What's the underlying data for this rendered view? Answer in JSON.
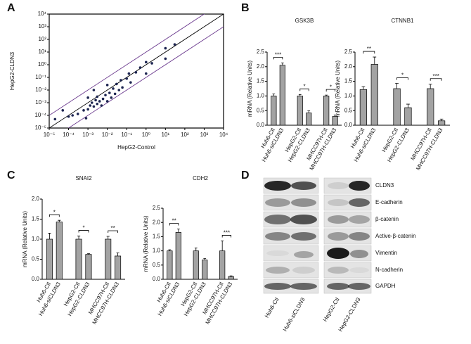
{
  "panels": [
    "A",
    "B",
    "C",
    "D"
  ],
  "chart_data": [
    {
      "type": "scatter",
      "x_label": "HepG2-Control",
      "y_label": "HepG2-CLDN3",
      "log_scale": true,
      "color": "#1c2450",
      "x": [
        2e-05,
        5e-05,
        0.0001,
        0.00016,
        0.0003,
        0.0006,
        0.0008,
        0.001,
        0.001,
        0.0013,
        0.0016,
        0.002,
        0.002,
        0.0025,
        0.003,
        0.003,
        0.004,
        0.005,
        0.006,
        0.008,
        0.01,
        0.01,
        0.013,
        0.016,
        0.02,
        0.025,
        0.03,
        0.04,
        0.05,
        0.06,
        0.1,
        0.13,
        0.16,
        0.3,
        0.5,
        1,
        1,
        2,
        10,
        10,
        30
      ],
      "y": [
        5e-05,
        0.00025,
        8e-05,
        0.0001,
        0.00013,
        0.00025,
        6e-05,
        0.0003,
        0.0025,
        0.0006,
        0.001,
        0.0005,
        0.01,
        0.0016,
        0.0008,
        0.003,
        0.0013,
        0.0006,
        0.002,
        0.004,
        0.0013,
        0.025,
        0.006,
        0.0025,
        0.013,
        0.005,
        0.03,
        0.01,
        0.06,
        0.016,
        0.08,
        0.2,
        0.04,
        0.25,
        0.6,
        1.6,
        0.2,
        1.3,
        20,
        3,
        40
      ],
      "fold_lines": [
        {
          "factor": 1,
          "color": "#000000"
        },
        {
          "factor": 10,
          "color": "#6b3a8e"
        },
        {
          "factor": 0.1,
          "color": "#6b3a8e"
        }
      ],
      "xlim": [
        1e-05,
        10000.0
      ],
      "ylim": [
        1e-05,
        10000.0
      ],
      "xticks": [
        {
          "value": 1e-05,
          "label": "10⁻⁵"
        },
        {
          "value": 0.0001,
          "label": "10⁻⁴"
        },
        {
          "value": 0.001,
          "label": "10⁻³"
        },
        {
          "value": 0.01,
          "label": "10⁻²"
        },
        {
          "value": 0.1,
          "label": "10⁻¹"
        },
        {
          "value": 1,
          "label": "10⁰"
        },
        {
          "value": 10,
          "label": "10¹"
        },
        {
          "value": 100,
          "label": "10²"
        },
        {
          "value": 1000,
          "label": "10³"
        },
        {
          "value": 10000,
          "label": "10⁴"
        }
      ],
      "yticks": [
        {
          "value": 1e-05,
          "label": "10⁻⁵"
        },
        {
          "value": 0.0001,
          "label": "10⁻⁴"
        },
        {
          "value": 0.001,
          "label": "10⁻³"
        },
        {
          "value": 0.01,
          "label": "10⁻²"
        },
        {
          "value": 0.1,
          "label": "10⁻¹"
        },
        {
          "value": 1,
          "label": "10⁰"
        },
        {
          "value": 10,
          "label": "10¹"
        },
        {
          "value": 100,
          "label": "10²"
        },
        {
          "value": 1000,
          "label": "10³"
        },
        {
          "value": 10000,
          "label": "10⁴"
        }
      ]
    },
    {
      "type": "bar",
      "title": "GSK3B",
      "y_label": "mRNA (Relative Units)",
      "color": "#a3a3a3",
      "categories": [
        "Huh6-Ctl",
        "Huh6-siCLDN3",
        "HepG2-Ctl",
        "HepG2-CLDN3",
        "MHCC97H-Ctl",
        "MHCC97H-CLDN3"
      ],
      "values": [
        1.0,
        2.05,
        1.0,
        0.42,
        1.0,
        0.3
      ],
      "errors": [
        0.07,
        0.08,
        0.05,
        0.07,
        0.03,
        0.05
      ],
      "significance": [
        "***",
        "*",
        "*"
      ],
      "ylim": [
        0,
        2.5
      ],
      "yticks": [
        {
          "value": 0,
          "label": "0.0"
        },
        {
          "value": 0.5,
          "label": "0.5"
        },
        {
          "value": 1,
          "label": "1.0"
        },
        {
          "value": 1.5,
          "label": "1.5"
        },
        {
          "value": 2,
          "label": "2.0"
        },
        {
          "value": 2.5,
          "label": "2.5"
        }
      ]
    },
    {
      "type": "bar",
      "title": "CTNNB1",
      "y_label": "mRNA (Relative Units)",
      "color": "#a3a3a3",
      "categories": [
        "Huh6-Ctl",
        "Huh6-siCLDN3",
        "HepG2-Ctl",
        "HepG2-CLDN3",
        "MHCC97H-Ctl",
        "MHCC97H-CLDN3"
      ],
      "values": [
        1.22,
        2.08,
        1.25,
        0.6,
        1.25,
        0.15
      ],
      "errors": [
        0.1,
        0.25,
        0.18,
        0.12,
        0.15,
        0.06
      ],
      "significance": [
        "**",
        "*",
        "***"
      ],
      "ylim": [
        0,
        2.5
      ],
      "yticks": [
        {
          "value": 0,
          "label": "0.0"
        },
        {
          "value": 0.5,
          "label": "0.5"
        },
        {
          "value": 1,
          "label": "1.0"
        },
        {
          "value": 1.5,
          "label": "1.5"
        },
        {
          "value": 2,
          "label": "2.0"
        },
        {
          "value": 2.5,
          "label": "2.5"
        }
      ]
    },
    {
      "type": "bar",
      "title": "SNAI2",
      "y_label": "mRNA (Relative Units)",
      "color": "#a3a3a3",
      "categories": [
        "Huh6-Ctl",
        "Huh6-siCLDN3",
        "HepG2-Ctl",
        "HepG2-CLDN3",
        "MHCC97H-Ctl",
        "MHCC97H-CLDN3"
      ],
      "values": [
        1.0,
        1.43,
        1.0,
        0.62,
        1.0,
        0.58
      ],
      "errors": [
        0.15,
        0.04,
        0.08,
        0.02,
        0.07,
        0.08
      ],
      "significance": [
        "*",
        "*",
        "**"
      ],
      "ylim": [
        0,
        2
      ],
      "yticks": [
        {
          "value": 0,
          "label": "0.0"
        },
        {
          "value": 0.5,
          "label": "0.5"
        },
        {
          "value": 1,
          "label": "1.0"
        },
        {
          "value": 1.5,
          "label": "1.5"
        },
        {
          "value": 2,
          "label": "2.0"
        }
      ]
    },
    {
      "type": "bar",
      "title": "CDH2",
      "y_label": "mRNA (Relative Units)",
      "color": "#a3a3a3",
      "categories": [
        "Huh6-Ctl",
        "Huh6-siCLDN3",
        "HepG2-Ctl",
        "HepG2-CLDN3",
        "MHCC97H-Ctl",
        "MHCC97H-CLDN3"
      ],
      "values": [
        1.0,
        1.65,
        1.0,
        0.68,
        1.0,
        0.1
      ],
      "errors": [
        0.04,
        0.12,
        0.1,
        0.05,
        0.35,
        0.02
      ],
      "significance": [
        "**",
        null,
        "***"
      ],
      "ylim": [
        0,
        2.5
      ],
      "yticks": [
        {
          "value": 0,
          "label": "0.0"
        },
        {
          "value": 0.5,
          "label": "0.5"
        },
        {
          "value": 1,
          "label": "1.0"
        },
        {
          "value": 1.5,
          "label": "1.5"
        },
        {
          "value": 2,
          "label": "2.0"
        },
        {
          "value": 2.5,
          "label": "2.5"
        }
      ]
    }
  ],
  "blot": {
    "proteins": [
      "CLDN3",
      "E-cadherin",
      "β-catenin",
      "Active-β-catenin",
      "Vimentin",
      "N-cadherin",
      "GAPDH"
    ],
    "lanes": [
      "Huh6-Ctl",
      "Huh6-siCLDN3",
      "HepG2-Ctl",
      "HepG2-CLDN3"
    ]
  }
}
